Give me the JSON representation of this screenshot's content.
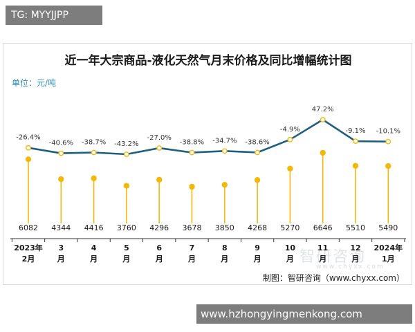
{
  "top_tag": "TG: MYYJJPP",
  "bottom_tag": "www.hzhongyingmenkong.com",
  "watermark": "智研咨询",
  "watermark_sub": "www.chyxx.com",
  "credit": "制图：智研咨询（www.chyxx.com）",
  "chart_data": {
    "type": "line",
    "title": "近一年大宗商品-液化天然气月末价格及同比增幅统计图",
    "unit": "单位：元/吨",
    "categories": [
      [
        "2023年",
        "2月"
      ],
      [
        "3",
        "月"
      ],
      [
        "4",
        "月"
      ],
      [
        "5",
        "月"
      ],
      [
        "6",
        "月"
      ],
      [
        "7",
        "月"
      ],
      [
        "8",
        "月"
      ],
      [
        "9",
        "月"
      ],
      [
        "10",
        "月"
      ],
      [
        "11",
        "月"
      ],
      [
        "12",
        "月"
      ],
      [
        "2024年",
        "1月"
      ]
    ],
    "series": [
      {
        "values": [
          6082,
          4344,
          4416,
          3760,
          4296,
          3678,
          3850,
          4268,
          5270,
          6646,
          5510,
          5490
        ]
      },
      {
        "values": [
          -26.4,
          -40.6,
          -38.7,
          -43.2,
          -27.0,
          -38.8,
          -34.7,
          -38.6,
          -4.9,
          47.2,
          -9.1,
          -10.1
        ]
      }
    ],
    "value_labels": [
      "6082",
      "4344",
      "4416",
      "3760",
      "4296",
      "3678",
      "3850",
      "4268",
      "5270",
      "6646",
      "5510",
      "5490"
    ],
    "growth_labels": [
      "-26.4%",
      "-40.6%",
      "-38.7%",
      "-43.2%",
      "-27.0%",
      "-38.8%",
      "-34.7%",
      "-38.6%",
      "-4.9%",
      "47.2%",
      "-9.1%",
      "-10.1%"
    ],
    "colors": {
      "line": "#1f5f7f",
      "lollipop": "#f2b90c",
      "point_fill": "#ffffff",
      "axis": "#333333"
    }
  }
}
